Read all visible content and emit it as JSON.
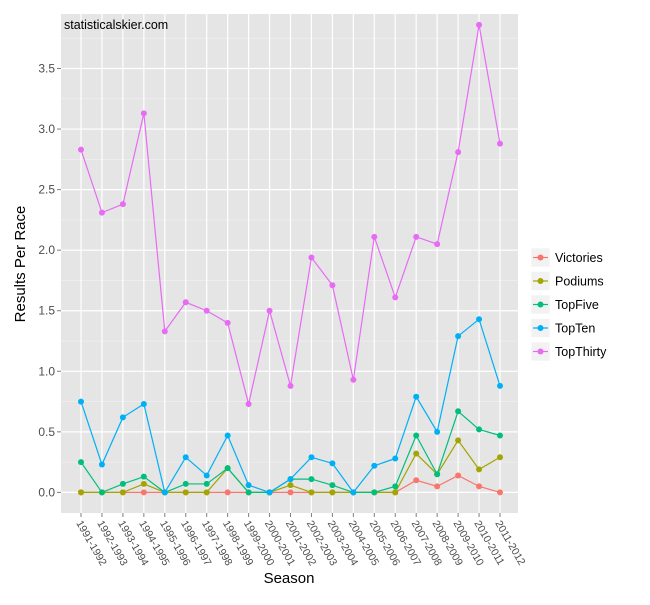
{
  "watermark": "statisticalskier.com",
  "chart_data": {
    "type": "line",
    "title": "",
    "xlabel": "Season",
    "ylabel": "Results Per Race",
    "categories": [
      "1991-1992",
      "1992-1993",
      "1993-1994",
      "1994-1995",
      "1995-1996",
      "1996-1997",
      "1997-1998",
      "1998-1999",
      "1999-2000",
      "2000-2001",
      "2001-2002",
      "2002-2003",
      "2003-2004",
      "2004-2005",
      "2005-2006",
      "2006-2007",
      "2007-2008",
      "2008-2009",
      "2009-2010",
      "2010-2011",
      "2011-2012"
    ],
    "yticks": [
      "0.0",
      "0.5",
      "1.0",
      "1.5",
      "2.0",
      "2.5",
      "3.0",
      "3.5"
    ],
    "ylim": [
      -0.17,
      3.95
    ],
    "grid": true,
    "legend_position": "right",
    "series": [
      {
        "name": "Victories",
        "color": "#F8766D",
        "values": [
          0.0,
          0.0,
          0.0,
          0.0,
          0.0,
          0.0,
          0.0,
          0.0,
          0.0,
          0.0,
          0.0,
          0.0,
          0.0,
          0.0,
          0.0,
          0.0,
          0.1,
          0.05,
          0.14,
          0.05,
          0.0
        ]
      },
      {
        "name": "Podiums",
        "color": "#A3A500",
        "values": [
          0.0,
          0.0,
          0.0,
          0.07,
          0.0,
          0.0,
          0.0,
          0.2,
          0.0,
          0.0,
          0.06,
          0.0,
          0.0,
          0.0,
          0.0,
          0.0,
          0.32,
          0.15,
          0.43,
          0.19,
          0.29
        ]
      },
      {
        "name": "TopFive",
        "color": "#00BF7D",
        "values": [
          0.25,
          0.0,
          0.07,
          0.13,
          0.0,
          0.07,
          0.07,
          0.2,
          0.0,
          0.0,
          0.11,
          0.11,
          0.06,
          0.0,
          0.0,
          0.05,
          0.47,
          0.15,
          0.67,
          0.52,
          0.47
        ]
      },
      {
        "name": "TopTen",
        "color": "#00B0F6",
        "values": [
          0.75,
          0.23,
          0.62,
          0.73,
          0.0,
          0.29,
          0.14,
          0.47,
          0.06,
          0.0,
          0.11,
          0.29,
          0.24,
          0.0,
          0.22,
          0.28,
          0.79,
          0.5,
          1.29,
          1.43,
          0.88
        ]
      },
      {
        "name": "TopThirty",
        "color": "#E76BF3",
        "values": [
          2.83,
          2.31,
          2.38,
          3.13,
          1.33,
          1.57,
          1.5,
          1.4,
          0.73,
          1.5,
          0.88,
          1.94,
          1.71,
          0.93,
          2.11,
          1.61,
          2.11,
          2.05,
          2.81,
          3.86,
          2.88
        ]
      }
    ]
  }
}
